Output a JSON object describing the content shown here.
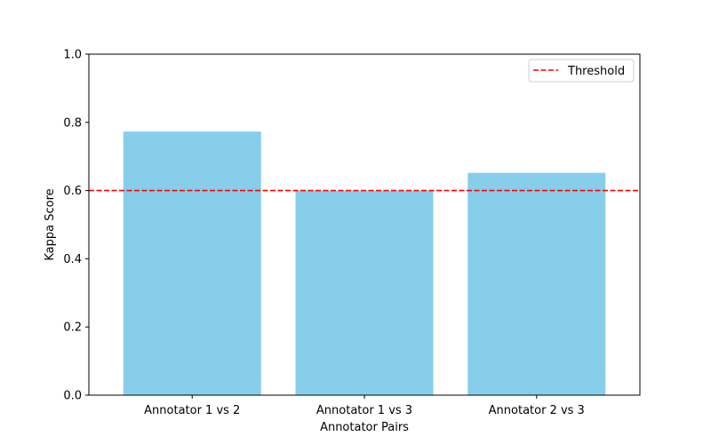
{
  "chart_data": {
    "type": "bar",
    "title": "",
    "xlabel": "Annotator Pairs",
    "ylabel": "Kappa Score",
    "categories": [
      "Annotator 1 vs 2",
      "Annotator 1 vs 3",
      "Annotator 2 vs 3"
    ],
    "values": [
      0.773,
      0.6,
      0.652
    ],
    "ylim": [
      0,
      1.0
    ],
    "yticks": [
      "0.0",
      "0.2",
      "0.4",
      "0.6",
      "0.8",
      "1.0"
    ],
    "bar_color": "#87ceeb",
    "threshold": {
      "label": "Threshold",
      "value": 0.6,
      "color": "#ff0000",
      "style": "dashed"
    },
    "legend": {
      "placement": "top-right",
      "entries": [
        "Threshold"
      ]
    },
    "grid": false
  }
}
